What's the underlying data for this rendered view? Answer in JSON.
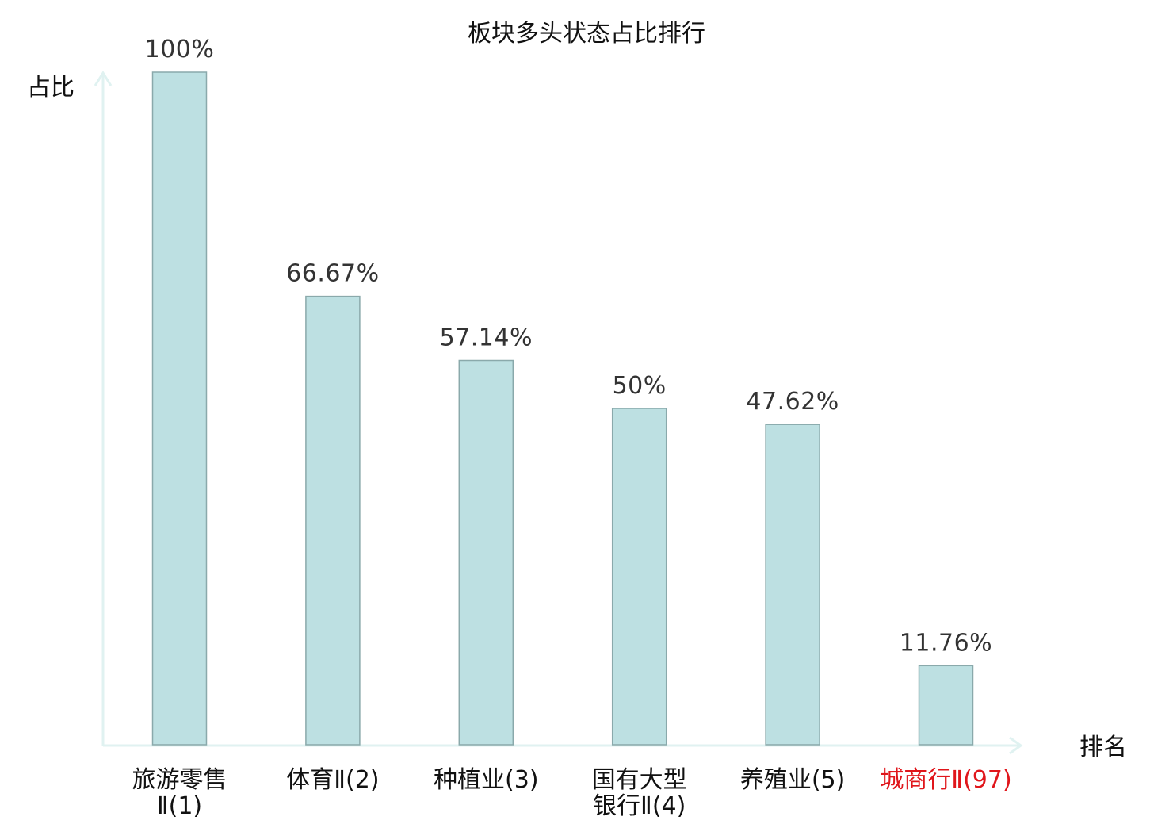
{
  "chart_data": {
    "type": "bar",
    "title": "板块多头状态占比排行",
    "xlabel": "排名",
    "ylabel": "占比",
    "ylim": [
      0,
      100
    ],
    "grid": false,
    "legend": "none",
    "categories": [
      "旅游零售Ⅱ(1)",
      "体育Ⅱ(2)",
      "种植业(3)",
      "国有大型银行Ⅱ(4)",
      "养殖业(5)",
      "城商行Ⅱ(97)"
    ],
    "category_lines": [
      [
        "旅游零售",
        "Ⅱ(1)"
      ],
      [
        "体育Ⅱ(2)"
      ],
      [
        "种植业(3)"
      ],
      [
        "国有大型",
        "银行Ⅱ(4)"
      ],
      [
        "养殖业(5)"
      ],
      [
        "城商行Ⅱ(97)"
      ]
    ],
    "values": [
      100,
      66.67,
      57.14,
      50,
      47.62,
      11.76
    ],
    "value_labels": [
      "100%",
      "66.67%",
      "57.14%",
      "50%",
      "47.62%",
      "11.76%"
    ],
    "highlight_index": 5
  },
  "colors": {
    "bar_fill": "#bde0e2",
    "bar_stroke": "#8aa9ab",
    "axis": "#e0f2f1",
    "text": "#222222",
    "value_text": "#333333",
    "highlight_text": "#e0161b"
  }
}
